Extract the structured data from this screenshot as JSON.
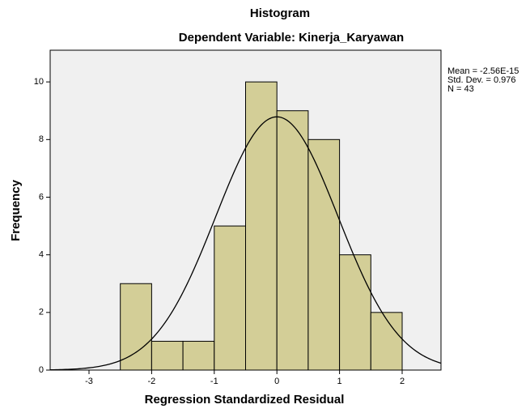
{
  "chart_data": {
    "type": "histogram",
    "title": "Histogram",
    "subtitle": "Dependent Variable: Kinerja_Karyawan",
    "x_label": "Regression Standardized Residual",
    "y_label": "Frequency",
    "bins": [
      -2.5,
      -2,
      -1.5,
      -1,
      -0.5,
      0,
      0.5,
      1,
      1.5,
      2
    ],
    "values": [
      3,
      1,
      1,
      5,
      10,
      9,
      8,
      4,
      2
    ],
    "color": "#d3ce97",
    "xlim": [
      -3.62,
      2.62
    ],
    "ylim": [
      0,
      11.1
    ],
    "xticks": [
      -3,
      -2,
      -1,
      0,
      1,
      2
    ],
    "yticks": [
      0,
      2,
      4,
      6,
      8,
      10
    ],
    "stats": [
      {
        "label": "Mean = -2.56E-15",
        "value": -2.56e-15
      },
      {
        "label": "Std. Dev. = 0.976",
        "value": 0.976
      },
      {
        "label": "N = 43",
        "value": 43
      }
    ]
  }
}
